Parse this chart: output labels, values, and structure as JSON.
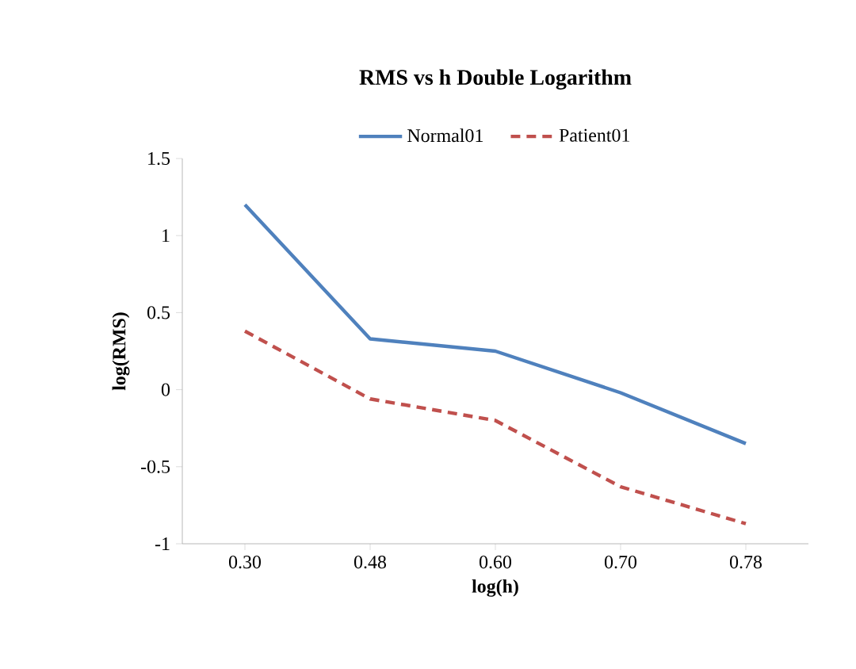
{
  "chart_data": {
    "type": "line",
    "title": "RMS vs h  Double Logarithm",
    "xlabel": "log(h)",
    "ylabel": "log(RMS)",
    "categories": [
      "0.30",
      "0.48",
      "0.60",
      "0.70",
      "0.78"
    ],
    "series": [
      {
        "name": "Normal01",
        "color": "#4f81bd",
        "line_style": "solid",
        "values": [
          1.2,
          0.33,
          0.25,
          -0.02,
          -0.35
        ]
      },
      {
        "name": "Patient01",
        "color": "#c0504d",
        "line_style": "dashed",
        "values": [
          0.38,
          -0.06,
          -0.2,
          -0.63,
          -0.87
        ]
      }
    ],
    "ylim": [
      -1,
      1.5
    ],
    "yticks": [
      -1,
      -0.5,
      0,
      0.5,
      1,
      1.5
    ],
    "legend": "top",
    "grid": false,
    "marker": "none"
  }
}
